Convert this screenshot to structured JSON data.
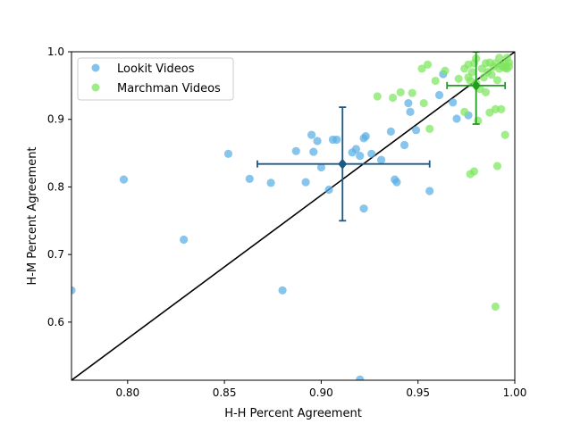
{
  "chart_data": {
    "type": "scatter",
    "title": "",
    "xlabel": "H-H Percent Agreement",
    "ylabel": "H-M Percent Agreement",
    "xlim": [
      0.771,
      1.0
    ],
    "ylim": [
      0.514,
      1.0
    ],
    "xticks": [
      "0.80",
      "0.85",
      "0.90",
      "0.95",
      "1.00"
    ],
    "yticks": [
      "0.6",
      "0.7",
      "0.8",
      "0.9",
      "1.0"
    ],
    "grid": false,
    "legend_position": "top-left",
    "reference_line": {
      "from": [
        0.771,
        0.514
      ],
      "to": [
        1.0,
        1.0
      ],
      "color": "#000000"
    },
    "series": [
      {
        "name": "Lookit Videos",
        "color": "#5aaee6",
        "points": [
          [
            0.771,
            0.647
          ],
          [
            0.798,
            0.811
          ],
          [
            0.829,
            0.722
          ],
          [
            0.852,
            0.849
          ],
          [
            0.863,
            0.812
          ],
          [
            0.874,
            0.806
          ],
          [
            0.88,
            0.647
          ],
          [
            0.887,
            0.853
          ],
          [
            0.892,
            0.807
          ],
          [
            0.895,
            0.877
          ],
          [
            0.896,
            0.852
          ],
          [
            0.898,
            0.868
          ],
          [
            0.9,
            0.829
          ],
          [
            0.904,
            0.796
          ],
          [
            0.906,
            0.87
          ],
          [
            0.908,
            0.87
          ],
          [
            0.916,
            0.851
          ],
          [
            0.918,
            0.856
          ],
          [
            0.92,
            0.846
          ],
          [
            0.92,
            0.515
          ],
          [
            0.922,
            0.872
          ],
          [
            0.922,
            0.768
          ],
          [
            0.923,
            0.875
          ],
          [
            0.926,
            0.849
          ],
          [
            0.931,
            0.84
          ],
          [
            0.936,
            0.882
          ],
          [
            0.938,
            0.811
          ],
          [
            0.939,
            0.807
          ],
          [
            0.943,
            0.862
          ],
          [
            0.945,
            0.924
          ],
          [
            0.946,
            0.911
          ],
          [
            0.949,
            0.884
          ],
          [
            0.956,
            0.794
          ],
          [
            0.961,
            0.936
          ],
          [
            0.963,
            0.967
          ],
          [
            0.968,
            0.925
          ],
          [
            0.97,
            0.901
          ],
          [
            0.976,
            0.906
          ]
        ],
        "mean": [
          0.911,
          0.834
        ],
        "x_error": [
          0.867,
          0.956
        ],
        "y_error": [
          0.75,
          0.918
        ],
        "error_color": "#1a5a85"
      },
      {
        "name": "Marchman Videos",
        "color": "#7ee65e",
        "points": [
          [
            0.929,
            0.934
          ],
          [
            0.937,
            0.932
          ],
          [
            0.941,
            0.94
          ],
          [
            0.947,
            0.939
          ],
          [
            0.952,
            0.975
          ],
          [
            0.953,
            0.924
          ],
          [
            0.955,
            0.981
          ],
          [
            0.956,
            0.886
          ],
          [
            0.959,
            0.957
          ],
          [
            0.964,
            0.972
          ],
          [
            0.971,
            0.96
          ],
          [
            0.974,
            0.911
          ],
          [
            0.974,
            0.975
          ],
          [
            0.976,
            0.981
          ],
          [
            0.976,
            0.962
          ],
          [
            0.977,
            0.819
          ],
          [
            0.977,
            0.957
          ],
          [
            0.978,
            0.97
          ],
          [
            0.979,
            0.823
          ],
          [
            0.979,
            0.983
          ],
          [
            0.98,
            0.99
          ],
          [
            0.98,
            0.954
          ],
          [
            0.981,
            0.898
          ],
          [
            0.982,
            0.945
          ],
          [
            0.983,
            0.975
          ],
          [
            0.984,
            0.962
          ],
          [
            0.985,
            0.983
          ],
          [
            0.985,
            0.94
          ],
          [
            0.986,
            0.97
          ],
          [
            0.987,
            0.91
          ],
          [
            0.987,
            0.984
          ],
          [
            0.988,
            0.966
          ],
          [
            0.989,
            0.978
          ],
          [
            0.99,
            0.623
          ],
          [
            0.99,
            0.915
          ],
          [
            0.99,
            0.983
          ],
          [
            0.991,
            0.958
          ],
          [
            0.991,
            0.831
          ],
          [
            0.992,
            0.991
          ],
          [
            0.992,
            0.975
          ],
          [
            0.993,
            0.915
          ],
          [
            0.993,
            0.98
          ],
          [
            0.994,
            0.978
          ],
          [
            0.995,
            0.877
          ],
          [
            0.995,
            0.976
          ],
          [
            0.995,
            0.982
          ],
          [
            0.996,
            0.975
          ],
          [
            0.997,
            0.984
          ],
          [
            0.996,
            0.991
          ],
          [
            0.997,
            0.978
          ]
        ],
        "mean": [
          0.98,
          0.95
        ],
        "x_error": [
          0.965,
          0.995
        ],
        "y_error": [
          0.893,
          1.0
        ],
        "error_color": "#1f9e1f"
      }
    ]
  }
}
